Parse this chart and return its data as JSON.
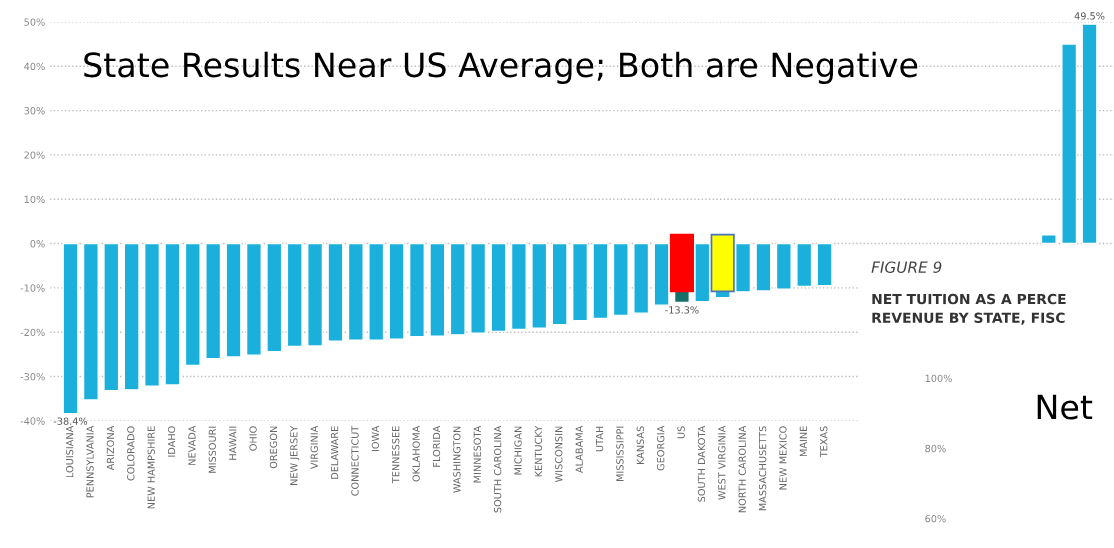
{
  "chart_data": [
    {
      "type": "bar",
      "title": "State Results Near US Average; Both are Negative",
      "categories": [
        "LOUISIANA",
        "PENNSYLVANIA",
        "ARIZONA",
        "COLORADO",
        "NEW HAMPSHIRE",
        "IDAHO",
        "NEVADA",
        "MISSOURI",
        "HAWAII",
        "OHIO",
        "OREGON",
        "NEW JERSEY",
        "VIRGINIA",
        "DELAWARE",
        "CONNECTICUT",
        "IOWA",
        "TENNESSEE",
        "OKLAHOMA",
        "FLORIDA",
        "WASHINGTON",
        "MINNESOTA",
        "SOUTH CAROLINA",
        "MICHIGAN",
        "KENTUCKY",
        "WISCONSIN",
        "ALABAMA",
        "UTAH",
        "MISSISSIPPI",
        "KANSAS",
        "GEORGIA",
        "US",
        "SOUTH DAKOTA",
        "WEST VIRGINIA",
        "NORTH CAROLINA",
        "MASSACHUSETTS",
        "NEW MEXICO",
        "MAINE",
        "TEXAS",
        null,
        null,
        null,
        null,
        null,
        null,
        null,
        null,
        null,
        null,
        null,
        null,
        null
      ],
      "values": [
        -38.4,
        -35.3,
        -33.2,
        -33.0,
        -32.2,
        -31.9,
        -27.5,
        -26.0,
        -25.6,
        -25.2,
        -24.4,
        -23.2,
        -23.1,
        -22.0,
        -21.8,
        -21.8,
        -21.6,
        -21.0,
        -20.9,
        -20.6,
        -20.2,
        -19.8,
        -19.4,
        -19.1,
        -18.3,
        -17.4,
        -16.9,
        -16.2,
        -15.7,
        -13.9,
        -13.3,
        -13.1,
        -12.2,
        -10.9,
        -10.7,
        -10.3,
        -9.7,
        -9.5,
        null,
        null,
        null,
        null,
        null,
        null,
        null,
        null,
        null,
        null,
        2,
        45,
        49.5
      ],
      "value_labels": [
        "-38.4%",
        null,
        null,
        null,
        null,
        null,
        null,
        null,
        null,
        null,
        null,
        null,
        null,
        null,
        null,
        null,
        null,
        null,
        null,
        null,
        null,
        null,
        null,
        null,
        null,
        null,
        null,
        null,
        null,
        null,
        "-13.3%",
        null,
        null,
        null,
        null,
        null,
        null,
        null,
        null,
        null,
        null,
        null,
        null,
        null,
        null,
        null,
        null,
        null,
        null,
        null,
        "49.5%"
      ],
      "colors": [
        "#1bb0dc",
        "#1bb0dc",
        "#1bb0dc",
        "#1bb0dc",
        "#1bb0dc",
        "#1bb0dc",
        "#1bb0dc",
        "#1bb0dc",
        "#1bb0dc",
        "#1bb0dc",
        "#1bb0dc",
        "#1bb0dc",
        "#1bb0dc",
        "#1bb0dc",
        "#1bb0dc",
        "#1bb0dc",
        "#1bb0dc",
        "#1bb0dc",
        "#1bb0dc",
        "#1bb0dc",
        "#1bb0dc",
        "#1bb0dc",
        "#1bb0dc",
        "#1bb0dc",
        "#1bb0dc",
        "#1bb0dc",
        "#1bb0dc",
        "#1bb0dc",
        "#1bb0dc",
        "#1bb0dc",
        "#16706a",
        "#1bb0dc",
        "#1bb0dc",
        "#1bb0dc",
        "#1bb0dc",
        "#1bb0dc",
        "#1bb0dc",
        "#1bb0dc",
        "#1bb0dc",
        "#1bb0dc",
        "#1bb0dc",
        "#1bb0dc",
        "#1bb0dc",
        "#1bb0dc",
        "#1bb0dc",
        "#1bb0dc",
        "#1bb0dc",
        "#1bb0dc",
        "#1bb0dc",
        "#1bb0dc",
        "#1bb0dc"
      ],
      "ylim": [
        -40,
        50
      ],
      "yticks": [
        {
          "value": 50,
          "label": "50%"
        },
        {
          "value": 40,
          "label": "40%"
        },
        {
          "value": 30,
          "label": "30%"
        },
        {
          "value": 20,
          "label": "20%"
        },
        {
          "value": 10,
          "label": "10%"
        },
        {
          "value": 0,
          "label": "0%"
        },
        {
          "value": -10,
          "label": "-10%"
        },
        {
          "value": -20,
          "label": "-20%"
        },
        {
          "value": -30,
          "label": "-30%"
        },
        {
          "value": -40,
          "label": "-40%"
        }
      ],
      "grid": "y"
    },
    {
      "type": "other",
      "title": "FIGURE 9",
      "subtitle": "NET TUITION AS A PERCE\nREVENUE BY STATE, FISC",
      "annotations": [
        "100%",
        "Net",
        "80%",
        "60%"
      ]
    }
  ]
}
